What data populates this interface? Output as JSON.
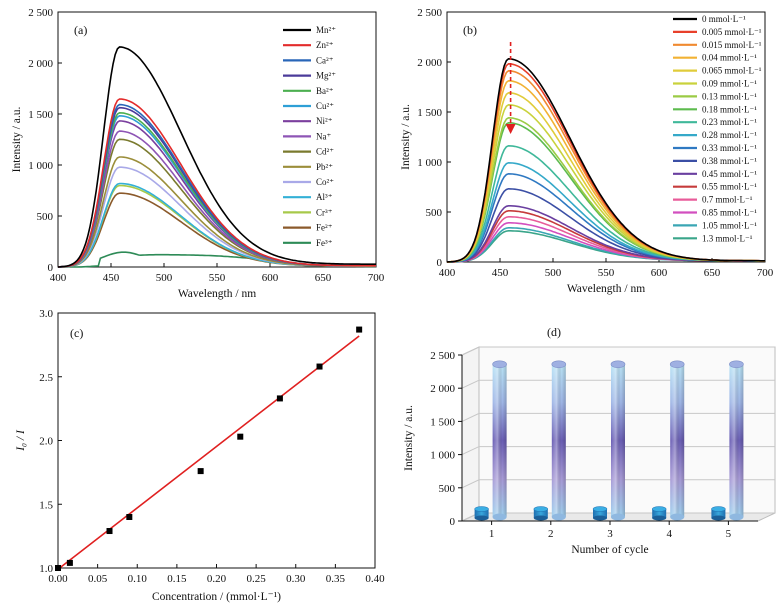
{
  "chart_data": [
    {
      "id": "a",
      "type": "line",
      "panel_label": "(a)",
      "xlabel": "Wavelength / nm",
      "ylabel": "Intensity / a.u.",
      "xlim": [
        400,
        700
      ],
      "ylim": [
        0,
        2500
      ],
      "xticks": [
        400,
        450,
        500,
        550,
        600,
        650,
        700
      ],
      "yticks": [
        0,
        500,
        1000,
        1500,
        2000,
        2500
      ],
      "ytick_labels": [
        "0",
        "500",
        "1 000",
        "1 500",
        "2 000",
        "2 500"
      ],
      "legend_position": "top-right",
      "series": [
        {
          "name": "Mn²⁺",
          "color": "#000000",
          "peak": 2130,
          "tail": 45
        },
        {
          "name": "Zn²⁺",
          "color": "#e32b2b",
          "peak": 1635,
          "tail": 20
        },
        {
          "name": "Ca²⁺",
          "color": "#2966b8",
          "peak": 1580,
          "tail": 20
        },
        {
          "name": "Mg²⁺",
          "color": "#4b3b9a",
          "peak": 1550,
          "tail": 20
        },
        {
          "name": "Ba²⁺",
          "color": "#4caf50",
          "peak": 1500,
          "tail": 20
        },
        {
          "name": "Cu²⁺",
          "color": "#2e9fd6",
          "peak": 1470,
          "tail": 20
        },
        {
          "name": "Ni²⁺",
          "color": "#7b3f9e",
          "peak": 1420,
          "tail": 20
        },
        {
          "name": "Na⁺",
          "color": "#8e55b5",
          "peak": 1320,
          "tail": 20
        },
        {
          "name": "Cd²⁺",
          "color": "#7a7a2e",
          "peak": 1240,
          "tail": 20
        },
        {
          "name": "Pb²⁺",
          "color": "#9b8e3a",
          "peak": 1070,
          "tail": 15
        },
        {
          "name": "Co²⁺",
          "color": "#a9a9e8",
          "peak": 970,
          "tail": 15
        },
        {
          "name": "Al³⁺",
          "color": "#33b0d6",
          "peak": 810,
          "tail": 15
        },
        {
          "name": "Cr³⁺",
          "color": "#a7c94a",
          "peak": 790,
          "tail": 15
        },
        {
          "name": "Fe²⁺",
          "color": "#8b5a2b",
          "peak": 715,
          "tail": 15
        },
        {
          "name": "Fe³⁺",
          "color": "#2e8b57",
          "peak": 150,
          "tail": 10,
          "flat": true
        }
      ]
    },
    {
      "id": "b",
      "type": "line",
      "panel_label": "(b)",
      "xlabel": "Wavelength / nm",
      "ylabel": "Intensity / a.u.",
      "xlim": [
        400,
        700
      ],
      "ylim": [
        0,
        2500
      ],
      "xticks": [
        400,
        450,
        500,
        550,
        600,
        650,
        700
      ],
      "yticks": [
        0,
        500,
        1000,
        1500,
        2000,
        2500
      ],
      "ytick_labels": [
        "0",
        "500",
        "1 000",
        "1 500",
        "2 000",
        "2 500"
      ],
      "legend_position": "top-right",
      "annotation": "downward arrow at 460 nm",
      "series": [
        {
          "name": "0 mmol·L⁻¹",
          "color": "#000000",
          "peak": 2020
        },
        {
          "name": "0.005 mmol·L⁻¹",
          "color": "#e8402a",
          "peak": 1970
        },
        {
          "name": "0.015 mmol·L⁻¹",
          "color": "#f08a30",
          "peak": 1900
        },
        {
          "name": "0.04 mmol·L⁻¹",
          "color": "#f2b233",
          "peak": 1800
        },
        {
          "name": "0.065 mmol·L⁻¹",
          "color": "#e0cc3a",
          "peak": 1680
        },
        {
          "name": "0.09 mmol·L⁻¹",
          "color": "#c9d23c",
          "peak": 1560
        },
        {
          "name": "0.13 mmol·L⁻¹",
          "color": "#9bcb45",
          "peak": 1430
        },
        {
          "name": "0.18 mmol·L⁻¹",
          "color": "#5dbb4e",
          "peak": 1380
        },
        {
          "name": "0.23 mmol·L⁻¹",
          "color": "#3fb89a",
          "peak": 1150
        },
        {
          "name": "0.28 mmol·L⁻¹",
          "color": "#35a9c9",
          "peak": 980
        },
        {
          "name": "0.33 mmol·L⁻¹",
          "color": "#2f79c2",
          "peak": 870
        },
        {
          "name": "0.38 mmol·L⁻¹",
          "color": "#3b4fa5",
          "peak": 720
        },
        {
          "name": "0.45 mmol·L⁻¹",
          "color": "#6a3fa0",
          "peak": 550
        },
        {
          "name": "0.55 mmol·L⁻¹",
          "color": "#c63b3b",
          "peak": 500
        },
        {
          "name": "0.7 mmol·L⁻¹",
          "color": "#e85c9a",
          "peak": 440
        },
        {
          "name": "0.85 mmol·L⁻¹",
          "color": "#d24fbf",
          "peak": 380
        },
        {
          "name": "1.05 mmol·L⁻¹",
          "color": "#3aa6b4",
          "peak": 330
        },
        {
          "name": "1.3 mmol·L⁻¹",
          "color": "#3aa58a",
          "peak": 300
        }
      ]
    },
    {
      "id": "c",
      "type": "scatter",
      "panel_label": "(c)",
      "xlabel": "Concentration / (mmol·L⁻¹)",
      "ylabel": "I₀ / I",
      "xlim": [
        0.0,
        0.4
      ],
      "ylim": [
        1.0,
        3.0
      ],
      "xticks": [
        0.0,
        0.05,
        0.1,
        0.15,
        0.2,
        0.25,
        0.3,
        0.35,
        0.4
      ],
      "xtick_labels": [
        "0.00",
        "0.05",
        "0.10",
        "0.15",
        "0.20",
        "0.25",
        "0.30",
        "0.35",
        "0.40"
      ],
      "yticks": [
        1.0,
        1.5,
        2.0,
        2.5,
        3.0
      ],
      "ytick_labels": [
        "1.0",
        "1.5",
        "2.0",
        "2.5",
        "3.0"
      ],
      "points": [
        {
          "x": 0.0,
          "y": 1.0
        },
        {
          "x": 0.015,
          "y": 1.04
        },
        {
          "x": 0.065,
          "y": 1.29
        },
        {
          "x": 0.09,
          "y": 1.4
        },
        {
          "x": 0.18,
          "y": 1.76
        },
        {
          "x": 0.23,
          "y": 2.03
        },
        {
          "x": 0.28,
          "y": 2.33
        },
        {
          "x": 0.33,
          "y": 2.58
        },
        {
          "x": 0.38,
          "y": 2.87
        }
      ],
      "fit_line": {
        "x0": 0.0,
        "y0": 0.99,
        "x1": 0.38,
        "y1": 2.82,
        "color": "#e02020"
      }
    },
    {
      "id": "d",
      "type": "bar",
      "panel_label": "(d)",
      "xlabel": "Number of cycle",
      "ylabel": "Intensity / a.u.",
      "categories": [
        "1",
        "2",
        "3",
        "4",
        "5"
      ],
      "ylim": [
        0,
        2500
      ],
      "yticks": [
        0,
        500,
        1000,
        1500,
        2000,
        2500
      ],
      "ytick_labels": [
        "0",
        "500",
        "1 000",
        "1 500",
        "2 000",
        "2 500"
      ],
      "series": [
        {
          "values": [
            2300,
            2300,
            2300,
            2300,
            2300
          ]
        },
        {
          "values": [
            60,
            60,
            60,
            60,
            60
          ]
        }
      ]
    }
  ]
}
